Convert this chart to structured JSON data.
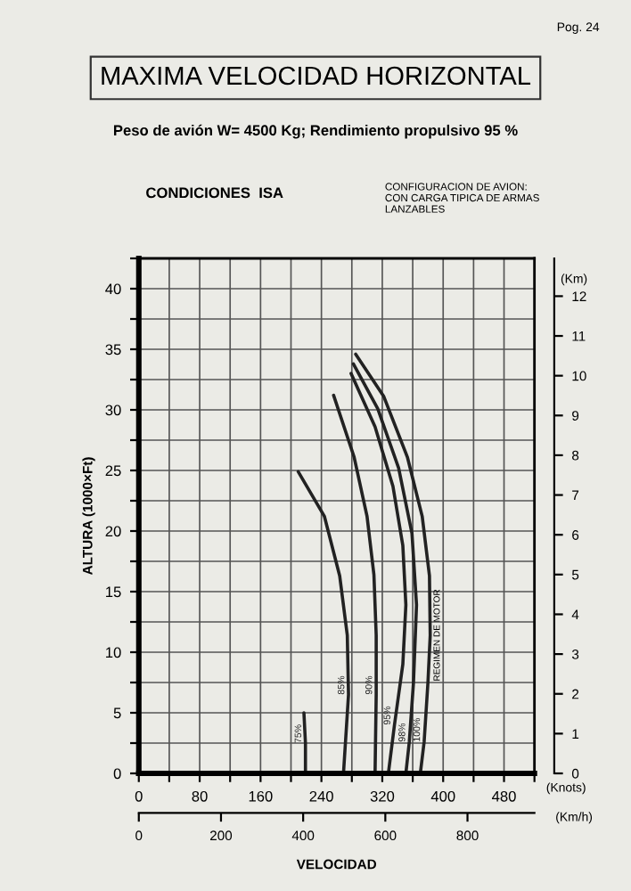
{
  "chart_data": {
    "type": "line",
    "title": "MAXIMA VELOCIDAD HORIZONTAL",
    "subtitle": "Peso de avión W= 4500 Kg; Rendimiento propulsivo 95 %",
    "xlabel": "VELOCIDAD",
    "ylabel": "ALTURA (1000×Ft)",
    "y2label": "(Km)",
    "x2label": "(Km/h)",
    "annotations": [
      "Pog. 24",
      "CONDICIONES  ISA",
      "CONFIGURACION DE AVION:\nCON CARGA TIPICA DE ARMAS\nLANZABLES",
      "(Knots)",
      {
        "text": "REGIMEN DE MOTOR",
        "x": 383,
        "y": 11.4
      }
    ],
    "series": [
      {
        "name": "75%",
        "color": "#222222",
        "x": [
          219,
          219,
          217
        ],
        "values": [
          0,
          2.5,
          5
        ]
      },
      {
        "name": "85%",
        "color": "#222222",
        "x": [
          269,
          275.6,
          274,
          264,
          244,
          209.5
        ],
        "values": [
          0,
          6.5,
          11.4,
          16.3,
          21.2,
          24.9
        ]
      },
      {
        "name": "90%",
        "color": "#222222",
        "x": [
          310.5,
          312,
          312,
          309,
          300,
          283,
          256
        ],
        "values": [
          0,
          6.5,
          11.4,
          16.4,
          21.2,
          26.1,
          31.2
        ]
      },
      {
        "name": "95%",
        "color": "#222222",
        "x": [
          328,
          336,
          347,
          351,
          347,
          334,
          310.5,
          279
        ],
        "values": [
          0,
          4.0,
          9.0,
          13.9,
          18.8,
          23.7,
          28.6,
          33.0
        ]
      },
      {
        "name": "98%",
        "color": "#222222",
        "x": [
          351,
          355.5,
          361,
          365,
          359,
          341.5,
          314,
          282
        ],
        "values": [
          0,
          2.6,
          7.5,
          13.9,
          19.8,
          25.2,
          30.1,
          33.8
        ]
      },
      {
        "name": "100%",
        "color": "#222222",
        "x": [
          370,
          375,
          380,
          383,
          382,
          372.5,
          353,
          322,
          285
        ],
        "values": [
          0,
          2.6,
          7.5,
          11.4,
          16.3,
          21.2,
          26.1,
          31.1,
          34.6
        ]
      }
    ],
    "xlim": [
      0,
      520
    ],
    "xticks": [
      0,
      {
        "value": 40,
        "label": null
      },
      80,
      {
        "value": 120,
        "label": null
      },
      160,
      {
        "value": 200,
        "label": null
      },
      240,
      {
        "value": 280,
        "label": null
      },
      320,
      {
        "value": 360,
        "label": null
      },
      400,
      {
        "value": 440,
        "label": null
      },
      480,
      {
        "value": 520,
        "label": null
      }
    ],
    "x2lim": [
      0,
      963
    ],
    "x2ticks": [
      0,
      200,
      400,
      600,
      800
    ],
    "ylim": [
      0,
      42.5
    ],
    "yticks": [
      0,
      {
        "value": 2.5,
        "label": null
      },
      5,
      {
        "value": 7.5,
        "label": null
      },
      10,
      {
        "value": 12.5,
        "label": null
      },
      15,
      {
        "value": 17.5,
        "label": null
      },
      20,
      {
        "value": 22.5,
        "label": null
      },
      25,
      {
        "value": 27.5,
        "label": null
      },
      30,
      {
        "value": 32.5,
        "label": null
      },
      35,
      {
        "value": 37.5,
        "label": null
      },
      40,
      {
        "value": 42.5,
        "label": null
      }
    ],
    "y2lim": [
      0,
      12.95
    ],
    "y2ticks": [
      0,
      1,
      2,
      3,
      4,
      5,
      6,
      7,
      8,
      9,
      10,
      11,
      12
    ],
    "grid": true,
    "legend": false,
    "marker": "none",
    "line_style": "solid"
  }
}
